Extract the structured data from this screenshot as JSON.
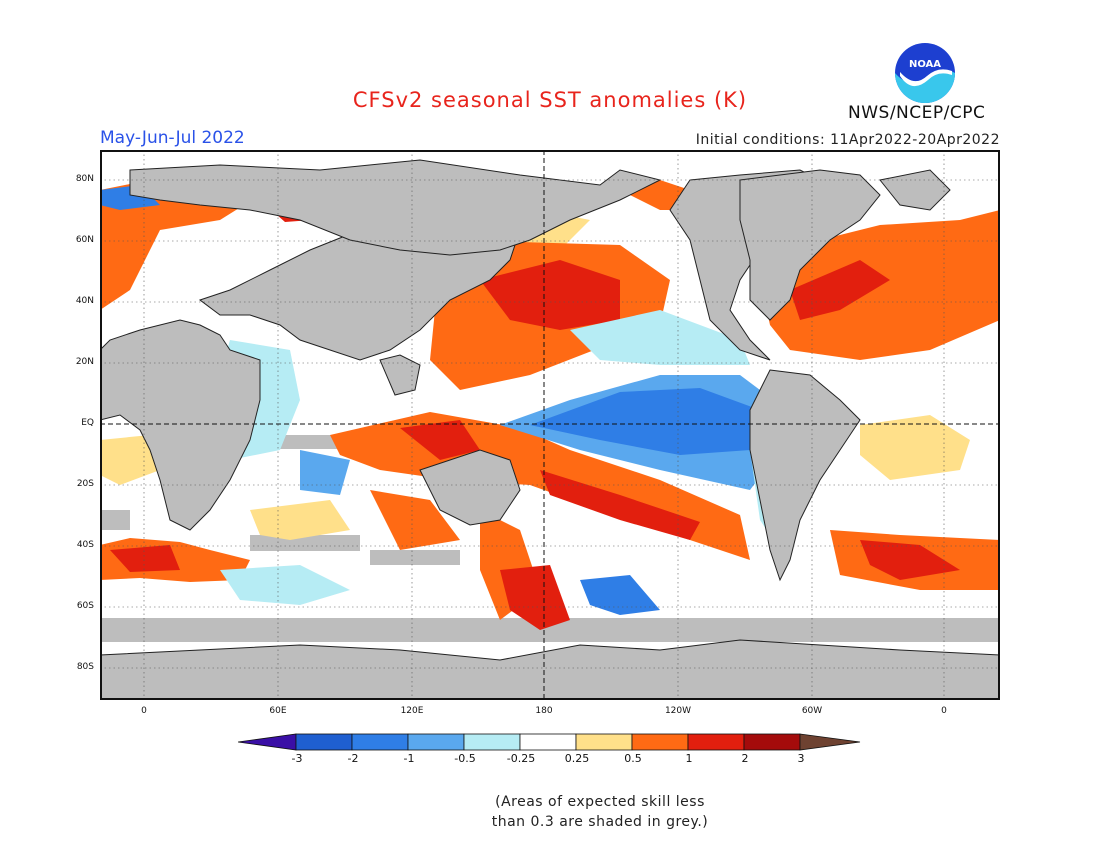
{
  "header": {
    "title": "CFSv2 seasonal SST anomalies (K)",
    "season": "May-Jun-Jul 2022",
    "initial_conditions": "Initial conditions: 11Apr2022-20Apr2022",
    "agency": "NWS/NCEP/CPC",
    "logo_text": "NOAA"
  },
  "map": {
    "lat_labels": [
      "80N",
      "60N",
      "40N",
      "20N",
      "EQ",
      "20S",
      "40S",
      "60S",
      "80S"
    ],
    "lon_labels": [
      "0",
      "60E",
      "120E",
      "180",
      "120W",
      "60W",
      "0"
    ],
    "colors": {
      "land": "#bdbdbd",
      "low_skill": "#bdbdbd",
      "ocean_neutral": "#ffffff"
    }
  },
  "legend": {
    "tick_labels": [
      "-3",
      "-2",
      "-1",
      "-0.5",
      "-0.25",
      "0.25",
      "0.5",
      "1",
      "2",
      "3"
    ],
    "bins": [
      {
        "color": "#3a0fa6"
      },
      {
        "color": "#1f5fd0"
      },
      {
        "color": "#2f7ee6"
      },
      {
        "color": "#5aa8ee"
      },
      {
        "color": "#b6ecf4"
      },
      {
        "color": "#ffffff"
      },
      {
        "color": "#ffe08a"
      },
      {
        "color": "#ff6a14"
      },
      {
        "color": "#e21f0e"
      },
      {
        "color": "#a40b0b"
      },
      {
        "color": "#6e4231"
      }
    ],
    "note_line1": "(Areas of expected skill less",
    "note_line2": "than 0.3 are shaded in grey.)"
  }
}
